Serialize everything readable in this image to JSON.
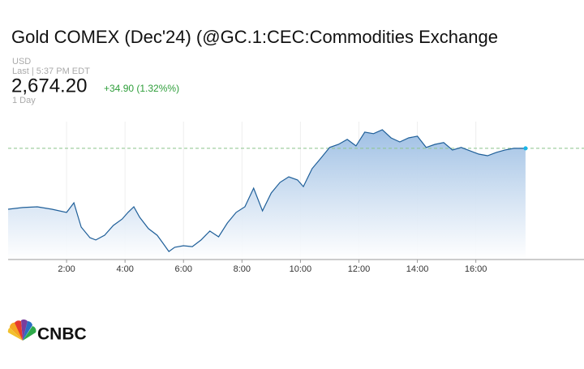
{
  "chart_data": {
    "type": "line",
    "title": "Gold COMEX (Dec'24) (@GC.1:CEC:Commodities Exchange",
    "currency": "USD",
    "last_update": "Last | 5:37 PM EDT",
    "last_price": "2,674.20",
    "change": "+34.90 (1.32%%)",
    "period": "1 Day",
    "logo": "CNBC",
    "color": "#1f5f99",
    "x": [
      0,
      0.5,
      1.0,
      1.5,
      2.0,
      2.25,
      2.5,
      2.8,
      3.0,
      3.3,
      3.6,
      3.9,
      4.1,
      4.3,
      4.5,
      4.8,
      5.1,
      5.3,
      5.5,
      5.7,
      6.0,
      6.3,
      6.6,
      6.9,
      7.2,
      7.5,
      7.8,
      8.1,
      8.4,
      8.7,
      9.0,
      9.3,
      9.6,
      9.9,
      10.1,
      10.4,
      10.7,
      11.0,
      11.3,
      11.6,
      11.9,
      12.2,
      12.5,
      12.8,
      13.1,
      13.4,
      13.7,
      14.0,
      14.3,
      14.6,
      14.9,
      15.2,
      15.5,
      15.8,
      16.1,
      16.4,
      16.7,
      17.0,
      17.3,
      17.7
    ],
    "values": [
      2639.3,
      2640.3,
      2640.7,
      2639.3,
      2637.5,
      2643.0,
      2629.1,
      2623.0,
      2621.7,
      2624.4,
      2630.0,
      2633.7,
      2637.5,
      2640.7,
      2634.7,
      2628.2,
      2624.4,
      2619.8,
      2615.1,
      2617.5,
      2618.4,
      2617.9,
      2621.7,
      2626.8,
      2623.5,
      2631.4,
      2637.5,
      2640.7,
      2651.4,
      2638.4,
      2648.6,
      2654.7,
      2657.9,
      2656.1,
      2652.3,
      2662.6,
      2668.6,
      2674.7,
      2676.5,
      2679.3,
      2675.6,
      2683.5,
      2682.6,
      2684.9,
      2680.2,
      2677.9,
      2680.2,
      2681.2,
      2674.7,
      2676.5,
      2677.5,
      2673.3,
      2674.7,
      2672.8,
      2670.9,
      2670.0,
      2671.9,
      2673.3,
      2674.2,
      2674.2
    ],
    "xlim": [
      0,
      19.7
    ],
    "ylim": [
      2610.5,
      2689.5
    ],
    "xticks": [
      {
        "value": 2,
        "label": "2:00"
      },
      {
        "value": 4,
        "label": "4:00"
      },
      {
        "value": 6,
        "label": "6:00"
      },
      {
        "value": 8,
        "label": "8:00"
      },
      {
        "value": 10,
        "label": "10:00"
      },
      {
        "value": 12,
        "label": "12:00"
      },
      {
        "value": 14,
        "label": "14:00"
      },
      {
        "value": 16,
        "label": "16:00"
      }
    ],
    "grid": true
  }
}
